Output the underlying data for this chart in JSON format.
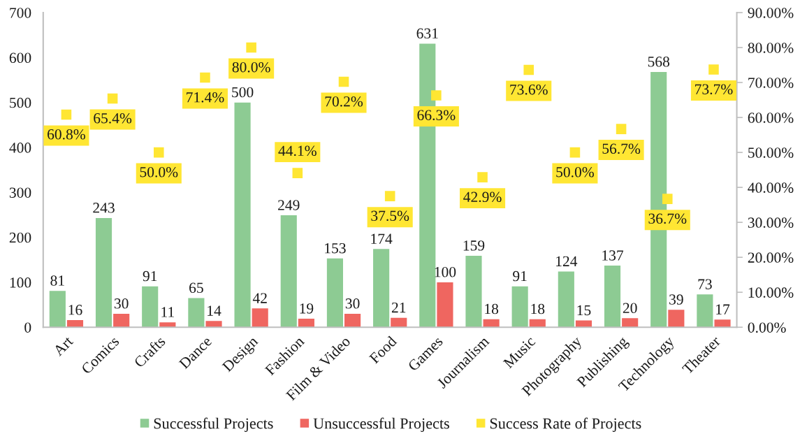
{
  "chart_data": {
    "type": "bar",
    "categories": [
      "Art",
      "Comics",
      "Crafts",
      "Dance",
      "Design",
      "Fashion",
      "Film & Video",
      "Food",
      "Games",
      "Journalism",
      "Music",
      "Photography",
      "Publishing",
      "Technology",
      "Theater"
    ],
    "series": [
      {
        "name": "Successful Projects",
        "color": "#8dcb93",
        "values": [
          81,
          243,
          91,
          65,
          500,
          249,
          153,
          174,
          631,
          159,
          91,
          124,
          137,
          568,
          73
        ],
        "value_labels": [
          "81",
          "243",
          "91",
          "65",
          "500",
          "249",
          "153",
          "174",
          "631",
          "159",
          "91",
          "124",
          "137",
          "568",
          "73"
        ]
      },
      {
        "name": "Unsuccessful Projects",
        "color": "#ef6660",
        "values": [
          16,
          30,
          11,
          14,
          42,
          19,
          30,
          21,
          100,
          18,
          18,
          15,
          20,
          39,
          17
        ],
        "value_labels": [
          "16",
          "30",
          "11",
          "14",
          "42",
          "19",
          "30",
          "21",
          "100",
          "18",
          "18",
          "15",
          "20",
          "39",
          "17"
        ]
      },
      {
        "name": "Success Rate of Projects",
        "type": "scatter",
        "axis": "y2",
        "marker": "square",
        "color": "#ffe633",
        "values": [
          60.8,
          65.4,
          50.0,
          71.4,
          80.0,
          44.1,
          70.2,
          37.5,
          66.3,
          42.9,
          73.6,
          50.0,
          56.7,
          36.7,
          73.7
        ],
        "value_labels": [
          "60.8%",
          "65.4%",
          "50.0%",
          "71.4%",
          "80.0%",
          "44.1%",
          "70.2%",
          "37.5%",
          "66.3%",
          "42.9%",
          "73.6%",
          "50.0%",
          "56.7%",
          "36.7%",
          "73.7%"
        ]
      }
    ],
    "ylim": [
      0,
      700
    ],
    "yticks": [
      0,
      100,
      200,
      300,
      400,
      500,
      600,
      700
    ],
    "y2lim": [
      0,
      90
    ],
    "y2ticks": [
      {
        "value": 0,
        "label": "0.00%"
      },
      {
        "value": 10,
        "label": "10.00%"
      },
      {
        "value": 20,
        "label": "20.00%"
      },
      {
        "value": 30,
        "label": "30.00%"
      },
      {
        "value": 40,
        "label": "40.00%"
      },
      {
        "value": 50,
        "label": "50.00%"
      },
      {
        "value": 60,
        "label": "60.00%"
      },
      {
        "value": 70,
        "label": "70.00%"
      },
      {
        "value": 80,
        "label": "80.00%"
      },
      {
        "value": 90,
        "label": "90.00%"
      }
    ],
    "legend": "bottom",
    "grid": false
  }
}
